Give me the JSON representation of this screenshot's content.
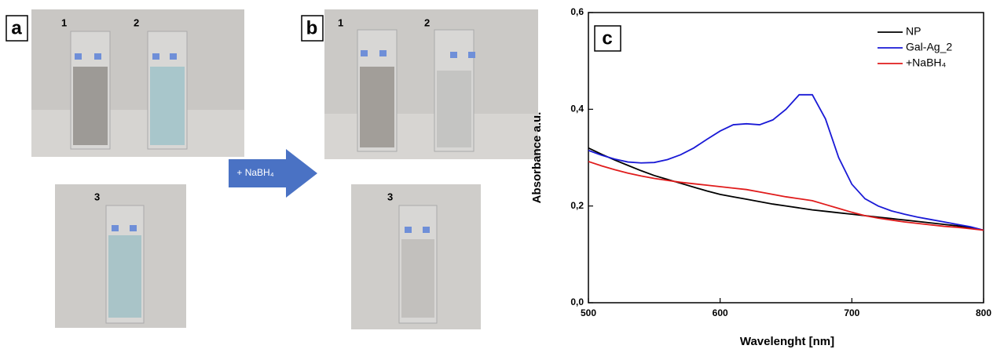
{
  "figure": {
    "panel_labels": [
      "a",
      "b",
      "c"
    ],
    "cuvette_labels_a": [
      "1",
      "2",
      "3"
    ],
    "cuvette_labels_b": [
      "1",
      "2",
      "3"
    ],
    "arrow_label": "+ NaBH₄"
  },
  "chart_data": {
    "type": "line",
    "xlabel": "Wavelenght [nm]",
    "ylabel": "Absorbance a.u.",
    "x": [
      500,
      510,
      520,
      530,
      540,
      550,
      560,
      570,
      580,
      590,
      600,
      610,
      620,
      630,
      640,
      650,
      660,
      670,
      680,
      690,
      700,
      710,
      720,
      730,
      740,
      750,
      760,
      770,
      780,
      790,
      800
    ],
    "series": [
      {
        "name": "NP",
        "color": "#000000",
        "values": [
          0.32,
          0.307,
          0.295,
          0.284,
          0.273,
          0.263,
          0.255,
          0.247,
          0.239,
          0.231,
          0.224,
          0.219,
          0.214,
          0.209,
          0.204,
          0.2,
          0.196,
          0.192,
          0.189,
          0.186,
          0.183,
          0.18,
          0.177,
          0.174,
          0.171,
          0.168,
          0.165,
          0.162,
          0.159,
          0.155,
          0.15
        ]
      },
      {
        "name": "Gal-Ag_2",
        "color": "#1a1ad6",
        "values": [
          0.315,
          0.305,
          0.297,
          0.291,
          0.289,
          0.29,
          0.296,
          0.306,
          0.32,
          0.338,
          0.355,
          0.368,
          0.37,
          0.368,
          0.378,
          0.4,
          0.43,
          0.43,
          0.38,
          0.3,
          0.245,
          0.215,
          0.2,
          0.19,
          0.183,
          0.177,
          0.172,
          0.167,
          0.162,
          0.157,
          0.15
        ]
      },
      {
        "name": "+NaBH₄",
        "color": "#e01c1c",
        "values": [
          0.292,
          0.283,
          0.275,
          0.268,
          0.262,
          0.257,
          0.253,
          0.249,
          0.246,
          0.243,
          0.24,
          0.237,
          0.234,
          0.229,
          0.224,
          0.219,
          0.215,
          0.211,
          0.203,
          0.195,
          0.187,
          0.18,
          0.175,
          0.171,
          0.167,
          0.164,
          0.161,
          0.158,
          0.156,
          0.153,
          0.15
        ]
      }
    ],
    "xlim": [
      500,
      800
    ],
    "xticks": [
      500,
      600,
      700,
      800
    ],
    "ylim": [
      0,
      0.6
    ],
    "yticks": [
      {
        "value": 0,
        "label": "0,0"
      },
      {
        "value": 0.2,
        "label": "0,2"
      },
      {
        "value": 0.4,
        "label": "0,4"
      },
      {
        "value": 0.6,
        "label": "0,6"
      }
    ],
    "legend": "upper right",
    "grid": false
  }
}
